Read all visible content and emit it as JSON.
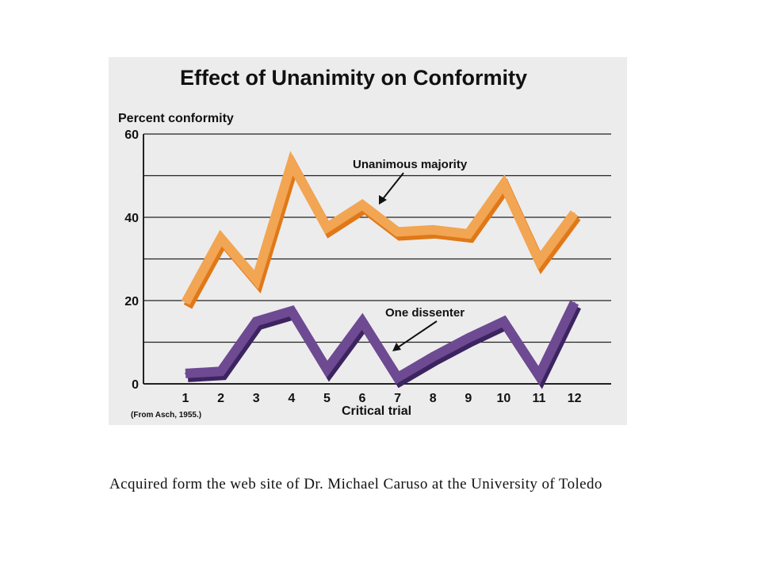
{
  "chart_data": {
    "type": "line",
    "title": "Effect of Unanimity on Conformity",
    "ylabel": "Percent conformity",
    "xlabel": "Critical trial",
    "source_note": "(From Asch, 1955.)",
    "categories": [
      "1",
      "2",
      "3",
      "4",
      "5",
      "6",
      "7",
      "8",
      "9",
      "10",
      "11",
      "12"
    ],
    "ylim": [
      0,
      60
    ],
    "y_ticks": [
      "0",
      "20",
      "40",
      "60"
    ],
    "grid": true,
    "series": [
      {
        "name": "Unanimous majority",
        "values": [
          19.5,
          35,
          25,
          53,
          37.5,
          43,
          36.5,
          37,
          36,
          48,
          29.5,
          41
        ],
        "color": "#f2a552",
        "shadow_color": "#e07818"
      },
      {
        "name": "One dissenter",
        "values": [
          2.5,
          3,
          15,
          17.5,
          3.5,
          15,
          1.5,
          6.5,
          11,
          15,
          2,
          19.5
        ],
        "color": "#6e4a92",
        "shadow_color": "#3c2460"
      }
    ]
  },
  "caption": "Acquired form the web site of  Dr. Michael Caruso at the University of  Toledo"
}
